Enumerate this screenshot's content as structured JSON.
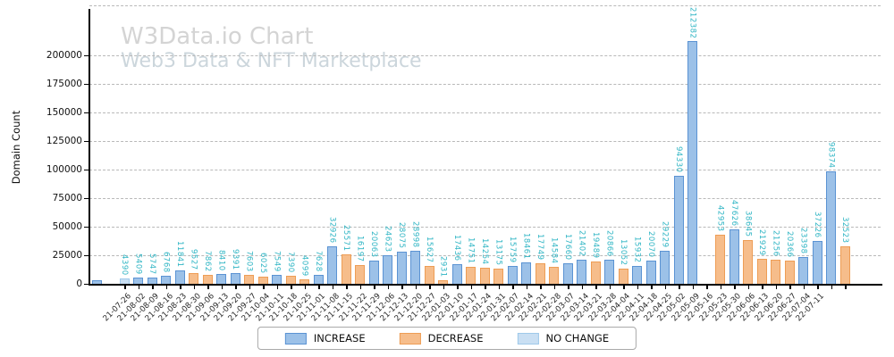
{
  "watermark": {
    "line1": "W3Data.io Chart",
    "line2": "Web3 Data & NFT Marketplace"
  },
  "legend": {
    "items": [
      {
        "label": "INCREASE",
        "series": "increase"
      },
      {
        "label": "DECREASE",
        "series": "decrease"
      },
      {
        "label": "NO CHANGE",
        "series": "no_change"
      }
    ]
  },
  "chart_data": {
    "type": "bar",
    "ylabel": "Domain Count",
    "ylim": [
      0,
      218000
    ],
    "yticks": [
      0,
      25000,
      50000,
      75000,
      100000,
      125000,
      150000,
      175000,
      200000
    ],
    "grid": "horizontal dashed",
    "legend_position": "bottom center",
    "colors": {
      "increase": {
        "fill": "#9cc1e8",
        "edge": "#5b93d3"
      },
      "decrease": {
        "fill": "#f6bd8b",
        "edge": "#ee9d55"
      },
      "no_change": {
        "fill": "#c9dff3",
        "edge": "#9fc9ea"
      },
      "value_label": "#2fb5c4"
    },
    "bars": [
      {
        "date": "",
        "value": 3300,
        "series": "increase",
        "show_value": false
      },
      {
        "date": "",
        "value": 0,
        "series": "none"
      },
      {
        "date": "21-07-26",
        "value": 4390,
        "series": "no_change"
      },
      {
        "date": "21-08-02",
        "value": 5409,
        "series": "increase"
      },
      {
        "date": "21-08-09",
        "value": 5747,
        "series": "increase"
      },
      {
        "date": "21-08-16",
        "value": 6768,
        "series": "increase"
      },
      {
        "date": "21-08-23",
        "value": 11841,
        "series": "increase"
      },
      {
        "date": "21-08-30",
        "value": 9527,
        "series": "decrease"
      },
      {
        "date": "21-09-06",
        "value": 7862,
        "series": "decrease"
      },
      {
        "date": "21-09-13",
        "value": 8410,
        "series": "increase"
      },
      {
        "date": "21-09-20",
        "value": 9391,
        "series": "increase"
      },
      {
        "date": "21-09-27",
        "value": 7603,
        "series": "decrease"
      },
      {
        "date": "21-10-04",
        "value": 6025,
        "series": "decrease"
      },
      {
        "date": "21-10-11",
        "value": 7549,
        "series": "increase"
      },
      {
        "date": "21-10-18",
        "value": 7390,
        "series": "decrease"
      },
      {
        "date": "21-10-25",
        "value": 4099,
        "series": "decrease"
      },
      {
        "date": "21-11-01",
        "value": 7628,
        "series": "increase"
      },
      {
        "date": "21-11-08",
        "value": 32926,
        "series": "increase"
      },
      {
        "date": "21-11-15",
        "value": 25571,
        "series": "decrease"
      },
      {
        "date": "21-11-22",
        "value": 16197,
        "series": "decrease"
      },
      {
        "date": "21-11-29",
        "value": 20063,
        "series": "increase"
      },
      {
        "date": "21-12-06",
        "value": 24623,
        "series": "increase"
      },
      {
        "date": "21-12-13",
        "value": 28075,
        "series": "increase"
      },
      {
        "date": "21-12-20",
        "value": 28998,
        "series": "increase"
      },
      {
        "date": "21-12-27",
        "value": 15627,
        "series": "decrease"
      },
      {
        "date": "22-01-03",
        "value": 2931,
        "series": "decrease"
      },
      {
        "date": "22-01-10",
        "value": 17436,
        "series": "increase"
      },
      {
        "date": "22-01-17",
        "value": 14751,
        "series": "decrease"
      },
      {
        "date": "22-01-24",
        "value": 14254,
        "series": "decrease"
      },
      {
        "date": "22-01-31",
        "value": 13175,
        "series": "decrease"
      },
      {
        "date": "22-02-07",
        "value": 15759,
        "series": "increase"
      },
      {
        "date": "22-02-14",
        "value": 18461,
        "series": "increase"
      },
      {
        "date": "22-02-21",
        "value": 17749,
        "series": "decrease"
      },
      {
        "date": "22-02-28",
        "value": 14584,
        "series": "decrease"
      },
      {
        "date": "22-03-07",
        "value": 17660,
        "series": "increase"
      },
      {
        "date": "22-03-14",
        "value": 21402,
        "series": "increase"
      },
      {
        "date": "22-03-21",
        "value": 19489,
        "series": "decrease"
      },
      {
        "date": "22-03-28",
        "value": 20866,
        "series": "increase"
      },
      {
        "date": "22-04-04",
        "value": 13052,
        "series": "decrease"
      },
      {
        "date": "22-04-11",
        "value": 15932,
        "series": "increase"
      },
      {
        "date": "22-04-18",
        "value": 20070,
        "series": "increase"
      },
      {
        "date": "22-04-25",
        "value": 29229,
        "series": "increase"
      },
      {
        "date": "22-05-02",
        "value": 94330,
        "series": "increase"
      },
      {
        "date": "22-05-09",
        "value": 212382,
        "series": "increase"
      },
      {
        "date": "22-05-16",
        "value": 0,
        "series": "none"
      },
      {
        "date": "22-05-23",
        "value": 42953,
        "series": "decrease"
      },
      {
        "date": "22-05-30",
        "value": 47626,
        "series": "increase"
      },
      {
        "date": "22-06-06",
        "value": 38645,
        "series": "decrease"
      },
      {
        "date": "22-06-13",
        "value": 21929,
        "series": "decrease"
      },
      {
        "date": "22-06-20",
        "value": 21256,
        "series": "decrease"
      },
      {
        "date": "22-06-27",
        "value": 20366,
        "series": "decrease"
      },
      {
        "date": "22-07-04",
        "value": 23398,
        "series": "increase"
      },
      {
        "date": "22-07-11",
        "value": 37226,
        "series": "increase"
      },
      {
        "date": "",
        "value": 98374,
        "series": "increase"
      },
      {
        "date": "",
        "value": 32523,
        "series": "decrease"
      }
    ]
  }
}
